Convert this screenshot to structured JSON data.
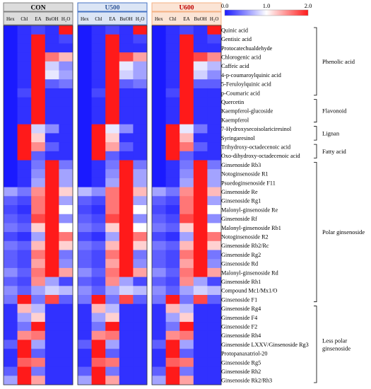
{
  "chart_data": {
    "type": "heatmap",
    "title": "",
    "color_scale": {
      "min": 0.0,
      "mid": 1.0,
      "max": 2.0,
      "tick_labels": [
        "0.0",
        "1.0",
        "2.0"
      ],
      "low_color": "#1a1aff",
      "mid_color": "#ffffff",
      "high_color": "#ff1a1a"
    },
    "panels": [
      {
        "name": "CON",
        "header_fill": "#dcdcdc",
        "header_border": "#7f7f7f",
        "header_text_color": "#000000"
      },
      {
        "name": "U500",
        "header_fill": "#dbe5f5",
        "header_border": "#4472c4",
        "header_text_color": "#2f5597"
      },
      {
        "name": "U600",
        "header_fill": "#fbe4d5",
        "header_border": "#f4b183",
        "header_text_color": "#c00000"
      }
    ],
    "columns": [
      "Hex",
      "Chl",
      "EA",
      "BuOH",
      "H₂O"
    ],
    "rows": [
      "Quinic acid",
      "Gentisic acid",
      "Protocatechualdehyde",
      "Chlorogenic acid",
      "Caffeic acid",
      "4-p-coumaroylquinic acid",
      "5-Feruloylquinic acid",
      "p-Coumaric acid",
      "Quercetin",
      "Kaempferol-glucoside",
      "Kaempferol",
      "7-Hydroxysecoisolariciresinol",
      "Syringaresinol",
      "Trihydroxy-octadecenoic acid",
      "Oxo-dihydroxy-octadecenoic acid",
      "Ginsenoside Rb3",
      "Notoginsenoside R1",
      "Psuedoginsenoside F11",
      "Ginsenoside Re",
      "Ginsenoside Rg1",
      "Malonyl-ginsenoside Re",
      "Ginsenoside Rf",
      "Malonyl-ginsenoside Rb1",
      "Notoginsenoside R2",
      "Ginsenoside Rb2/Rc",
      "Ginsenoside Rg2",
      "Ginsenoside Rd",
      "Malonyl-ginsenoside Rd",
      "Ginsenoside Rh1",
      "Compound Mc1/Mx1/O",
      "Ginsenoside F1",
      "Ginsenoside Rg4",
      "Ginsenoside F4",
      "Ginsenoside F2",
      "Ginsenoside Rh4",
      "Ginsenoside LXXV/Ginsenoside Rg3",
      "Protopanaxatriol-20",
      "Ginsenoside Rg5",
      "Ginsenoside Rh2",
      "Ginsenoside Rk2/Rh3"
    ],
    "groups": [
      {
        "label": "Phenolic acid",
        "start_row": 0,
        "end_row": 7
      },
      {
        "label": "Flavonoid",
        "start_row": 8,
        "end_row": 10
      },
      {
        "label": "Lignan",
        "start_row": 11,
        "end_row": 12
      },
      {
        "label": "Fatty acid",
        "start_row": 13,
        "end_row": 14
      },
      {
        "label": "Polar ginsenoside",
        "start_row": 15,
        "end_row": 30
      },
      {
        "label": "Less polar ginsenoside",
        "start_row": 31,
        "end_row": 39
      }
    ],
    "values": [
      [
        [
          0,
          0.1,
          0.2,
          0.1,
          2
        ],
        [
          0,
          0.1,
          0.2,
          0.1,
          2
        ],
        [
          0,
          0.1,
          0.2,
          0.1,
          2
        ]
      ],
      [
        [
          0,
          0.1,
          2,
          0.1,
          0.2
        ],
        [
          0,
          0.1,
          2,
          0.1,
          0.2
        ],
        [
          0,
          0.1,
          2,
          0.1,
          0.2
        ]
      ],
      [
        [
          0,
          0.1,
          2,
          0.1,
          0.1
        ],
        [
          0,
          0.1,
          2,
          0.1,
          0.1
        ],
        [
          0,
          0.1,
          2,
          0.1,
          0.1
        ]
      ],
      [
        [
          0,
          0.1,
          2,
          1.6,
          1.3
        ],
        [
          0,
          0.1,
          2,
          1.8,
          1.4
        ],
        [
          0,
          0.1,
          2,
          1.8,
          1.5
        ]
      ],
      [
        [
          0,
          0.1,
          2,
          0.8,
          0.5
        ],
        [
          0,
          0.1,
          2,
          0.9,
          0.6
        ],
        [
          0,
          0.1,
          2,
          0.9,
          0.7
        ]
      ],
      [
        [
          0,
          0.1,
          2,
          0.9,
          0.6
        ],
        [
          0,
          0.1,
          2,
          0.8,
          0.6
        ],
        [
          0,
          0.1,
          2,
          0.8,
          0.5
        ]
      ],
      [
        [
          0,
          0.1,
          2,
          0.3,
          0.4
        ],
        [
          0,
          0.1,
          2,
          0.3,
          0.4
        ],
        [
          0,
          0.1,
          2,
          0.3,
          0.3
        ]
      ],
      [
        [
          0,
          0.2,
          2,
          0.1,
          0.1
        ],
        [
          0,
          0.2,
          2,
          0.1,
          0.1
        ],
        [
          0,
          0.2,
          2,
          0.1,
          0.1
        ]
      ],
      [
        [
          0,
          0.1,
          2,
          0.1,
          0.1
        ],
        [
          0,
          0.1,
          2,
          0.1,
          0.1
        ],
        [
          0,
          0.1,
          2,
          0.1,
          0.1
        ]
      ],
      [
        [
          0,
          0.1,
          2,
          0.1,
          0.1
        ],
        [
          0,
          0.1,
          2,
          0.1,
          0.1
        ],
        [
          0,
          0.1,
          2,
          0.1,
          0.1
        ]
      ],
      [
        [
          0,
          0.1,
          2,
          0.1,
          0.1
        ],
        [
          0,
          0.1,
          2,
          0.1,
          0.1
        ],
        [
          0,
          0.1,
          2,
          0.1,
          0.1
        ]
      ],
      [
        [
          0,
          2,
          0.8,
          0.5,
          0.1
        ],
        [
          0,
          2,
          0.9,
          0.5,
          0.1
        ],
        [
          0,
          2,
          0.9,
          0.4,
          0.1
        ]
      ],
      [
        [
          0,
          2,
          1.2,
          0.1,
          0.1
        ],
        [
          0,
          2,
          1.2,
          0.1,
          0.1
        ],
        [
          0,
          2,
          1.3,
          0.1,
          0.1
        ]
      ],
      [
        [
          0,
          2,
          1.5,
          0.3,
          0.1
        ],
        [
          0,
          2,
          1.4,
          0.3,
          0.1
        ],
        [
          0,
          2,
          1.6,
          0.3,
          0.1
        ]
      ],
      [
        [
          0,
          2,
          0.3,
          0.1,
          0.1
        ],
        [
          0,
          2,
          0.3,
          0.1,
          0.1
        ],
        [
          0,
          2,
          0.3,
          0.1,
          0.1
        ]
      ],
      [
        [
          0,
          0.1,
          0.4,
          2,
          0.4
        ],
        [
          0,
          0.1,
          0.4,
          2,
          0.4
        ],
        [
          0,
          0.1,
          0.4,
          2,
          0.4
        ]
      ],
      [
        [
          0,
          0.1,
          0.5,
          2,
          0.6
        ],
        [
          0,
          0.1,
          0.5,
          2,
          0.6
        ],
        [
          0,
          0.1,
          0.5,
          2,
          0.6
        ]
      ],
      [
        [
          0,
          0.1,
          0.6,
          2,
          0.6
        ],
        [
          0,
          0.1,
          0.6,
          2,
          0.6
        ],
        [
          0,
          0.1,
          0.6,
          2,
          0.6
        ]
      ],
      [
        [
          0.6,
          0.4,
          1.5,
          2,
          1.2
        ],
        [
          0.7,
          0.5,
          1.6,
          2,
          1.3
        ],
        [
          0.6,
          0.4,
          1.5,
          2,
          1.3
        ]
      ],
      [
        [
          0.3,
          0.2,
          1.6,
          2,
          0.6
        ],
        [
          0.3,
          0.2,
          1.6,
          2,
          0.6
        ],
        [
          0.3,
          0.2,
          1.6,
          2,
          0.6
        ]
      ],
      [
        [
          0.2,
          0.1,
          1.6,
          2,
          1
        ],
        [
          0.2,
          0.1,
          1.6,
          2,
          1
        ],
        [
          0.2,
          0.1,
          1.6,
          2,
          1
        ]
      ],
      [
        [
          0.3,
          0.2,
          1.8,
          2,
          0.5
        ],
        [
          0.3,
          0.2,
          1.8,
          2,
          0.5
        ],
        [
          0.3,
          0.2,
          1.8,
          2,
          0.5
        ]
      ],
      [
        [
          0.4,
          0.3,
          1.2,
          2,
          1
        ],
        [
          0.4,
          0.3,
          1.2,
          2,
          1
        ],
        [
          0.4,
          0.3,
          1.2,
          2,
          1
        ]
      ],
      [
        [
          0.2,
          0.1,
          0.6,
          2,
          1.6
        ],
        [
          0.2,
          0.1,
          0.6,
          2,
          1.6
        ],
        [
          0.2,
          0.1,
          0.6,
          2,
          1.6
        ]
      ],
      [
        [
          0.4,
          0.3,
          1.3,
          2,
          1.2
        ],
        [
          0.4,
          0.3,
          1.3,
          2,
          1.2
        ],
        [
          0.4,
          0.3,
          1.3,
          2,
          1.2
        ]
      ],
      [
        [
          0.3,
          0.2,
          1.6,
          2,
          0.4
        ],
        [
          0.3,
          0.2,
          1.6,
          2,
          0.4
        ],
        [
          0.3,
          0.2,
          1.6,
          2,
          0.4
        ]
      ],
      [
        [
          0.3,
          0.2,
          1.4,
          2,
          0.5
        ],
        [
          0.3,
          0.2,
          1.4,
          2,
          0.5
        ],
        [
          0.3,
          0.2,
          1.4,
          2,
          0.5
        ]
      ],
      [
        [
          0.5,
          0.3,
          1.6,
          2,
          1.4
        ],
        [
          0.5,
          0.3,
          1.6,
          2,
          1.4
        ],
        [
          0.5,
          0.3,
          1.6,
          2,
          1.4
        ]
      ],
      [
        [
          0.3,
          0.2,
          1.5,
          0.6,
          0.2
        ],
        [
          0.3,
          0.2,
          1.5,
          0.6,
          0.2
        ],
        [
          0.3,
          0.2,
          1.5,
          0.6,
          0.2
        ]
      ],
      [
        [
          0.5,
          0.3,
          0.6,
          0.8,
          0.7
        ],
        [
          0.5,
          0.3,
          0.6,
          0.8,
          0.7
        ],
        [
          0.5,
          0.3,
          0.6,
          0.8,
          0.7
        ]
      ],
      [
        [
          0.4,
          2,
          0.4,
          1.8,
          0.3
        ],
        [
          0.4,
          2,
          0.4,
          1.8,
          0.3
        ],
        [
          0.4,
          2,
          0.4,
          1.8,
          0.3
        ]
      ],
      [
        [
          0.1,
          1.3,
          0.7,
          0.1,
          0.1
        ],
        [
          0.1,
          1.3,
          0.7,
          0.1,
          0.1
        ],
        [
          0.1,
          1.3,
          0.7,
          0.1,
          0.1
        ]
      ],
      [
        [
          0.1,
          0.6,
          1.2,
          0.1,
          0.1
        ],
        [
          0.1,
          0.6,
          1.2,
          0.1,
          0.1
        ],
        [
          0.1,
          0.6,
          1.2,
          0.1,
          0.1
        ]
      ],
      [
        [
          0.1,
          0.4,
          2,
          0.1,
          0.1
        ],
        [
          0.1,
          0.4,
          2,
          0.1,
          0.1
        ],
        [
          0.1,
          0.4,
          2,
          0.1,
          0.1
        ]
      ],
      [
        [
          0.1,
          1.5,
          1.6,
          0.1,
          0.1
        ],
        [
          0.1,
          1.5,
          1.6,
          0.1,
          0.1
        ],
        [
          0.1,
          1.5,
          1.6,
          0.1,
          0.1
        ]
      ],
      [
        [
          0.3,
          2,
          0.6,
          0.1,
          0.1
        ],
        [
          0.3,
          2,
          0.6,
          0.1,
          0.1
        ],
        [
          0.3,
          2,
          0.6,
          0.1,
          0.1
        ]
      ],
      [
        [
          0.1,
          2,
          0.3,
          0.1,
          0.1
        ],
        [
          0.1,
          2,
          0.3,
          0.1,
          0.1
        ],
        [
          0.1,
          2,
          0.3,
          0.1,
          0.1
        ]
      ],
      [
        [
          0.1,
          1.7,
          1.6,
          0.1,
          0.1
        ],
        [
          0.1,
          1.7,
          1.6,
          0.1,
          0.1
        ],
        [
          0.1,
          1.7,
          1.6,
          0.1,
          0.1
        ]
      ],
      [
        [
          0.3,
          2,
          0.4,
          0.1,
          0.1
        ],
        [
          0.3,
          2,
          0.4,
          0.1,
          0.1
        ],
        [
          0.3,
          2,
          0.4,
          0.1,
          0.1
        ]
      ],
      [
        [
          0.6,
          2,
          1.4,
          0.1,
          0.1
        ],
        [
          0.6,
          2,
          1.4,
          0.1,
          0.1
        ],
        [
          0.6,
          2,
          1.4,
          0.1,
          0.1
        ]
      ]
    ]
  }
}
